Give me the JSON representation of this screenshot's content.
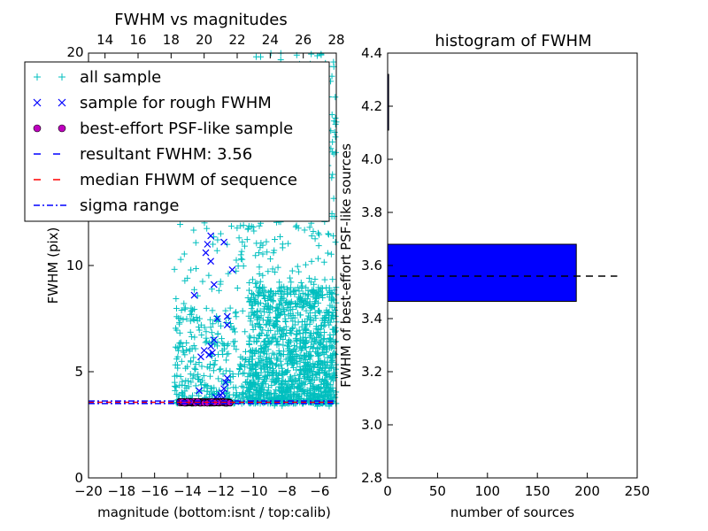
{
  "figure": {
    "background": "#ffffff"
  },
  "chart_data": [
    {
      "type": "scatter",
      "title": "FWHM vs magnitudes",
      "xlabel": "magnitude (bottom:isnt / top:calib)",
      "ylabel": "FWHM (pix)",
      "xlim": [
        -20,
        -5
      ],
      "ylim": [
        0,
        20
      ],
      "x_ticks": [
        -20,
        -18,
        -16,
        -14,
        -12,
        -10,
        -8,
        -6
      ],
      "x_tick_labels": [
        "−20",
        "−18",
        "−16",
        "−14",
        "−12",
        "−10",
        "−8",
        "−6"
      ],
      "y_ticks": [
        0,
        5,
        10
      ],
      "y_tick_labels": [
        "0",
        "5",
        "10"
      ],
      "top_ticks": [
        14,
        16,
        18,
        20,
        22,
        24,
        26,
        28
      ],
      "top_tick_labels": [
        "14",
        "16",
        "18",
        "20",
        "22",
        "24",
        "26",
        "28"
      ],
      "top_xlim": [
        13,
        28
      ],
      "top_ylabel_fragment": "20",
      "legend_position": "upper left",
      "colors": {
        "all_sample": "#00bfbf",
        "rough_sample": "#0000ff",
        "psf_sample_face": "#bf00bf",
        "resultant_line": "#0000ff",
        "median_line": "#ff0000",
        "sigma_line": "#0000ff"
      },
      "series": [
        {
          "name": "all sample",
          "marker": "+",
          "color": "#00bfbf",
          "clusters": [
            {
              "x_range": [
                -10.3,
                -5
              ],
              "y_range": [
                3.3,
                20
              ],
              "count": 1600,
              "dense_y": [
                3.5,
                9
              ]
            },
            {
              "x_range": [
                -14.8,
                -11
              ],
              "y_range": [
                3.5,
                13
              ],
              "count": 300,
              "dense_y": [
                3.5,
                8
              ]
            },
            {
              "x_range": [
                -11,
                -10.3
              ],
              "y_range": [
                3.5,
                12
              ],
              "count": 60,
              "dense_y": [
                3.5,
                6
              ]
            }
          ]
        },
        {
          "name": "sample for rough FWHM",
          "marker": "x",
          "color": "#0000ff",
          "x": [
            -13.6,
            -12.6,
            -12.8,
            -12.9,
            -12.6,
            -12.4,
            -12.2,
            -12.4,
            -12.6,
            -13.0,
            -11.8,
            -11.6,
            -11.6,
            -11.6,
            -11.7,
            -11.8,
            -11.9,
            -12.0,
            -12.3,
            -12.5,
            -13.2,
            -12.7,
            -13.3,
            -11.3,
            -11.9
          ],
          "y": [
            8.6,
            11.4,
            11.0,
            10.6,
            10.2,
            9.1,
            7.5,
            6.5,
            6.2,
            6.0,
            11.1,
            7.6,
            7.2,
            4.7,
            4.5,
            4.2,
            4.0,
            3.9,
            3.8,
            5.9,
            5.7,
            5.8,
            4.1,
            9.8,
            3.7
          ]
        },
        {
          "name": "best-effort PSF-like sample",
          "marker": "o",
          "color": "#bf00bf",
          "x_range": [
            -14.5,
            -11.4
          ],
          "y_value": 3.56,
          "count": 190
        }
      ],
      "reference_lines": [
        {
          "name": "resultant FWHM: 3.56",
          "y": 3.56,
          "style": "dashed",
          "color": "#0000ff"
        },
        {
          "name": "median FHWM of sequence",
          "y": 3.56,
          "style": "dashed",
          "color": "#ff0000"
        },
        {
          "name": "sigma range",
          "y": [
            3.5,
            3.62
          ],
          "style": "dashdot",
          "color": "#0000ff"
        }
      ],
      "legend": [
        {
          "label": "all sample",
          "marker": "+",
          "color": "#00bfbf"
        },
        {
          "label": "sample for rough FWHM",
          "marker": "x",
          "color": "#0000ff"
        },
        {
          "label": "best-effort PSF-like sample",
          "marker": "o",
          "color": "#bf00bf"
        },
        {
          "label": "resultant FWHM: 3.56",
          "marker": "dashed",
          "color": "#0000ff"
        },
        {
          "label": "median FHWM of sequence",
          "marker": "dashed",
          "color": "#ff0000"
        },
        {
          "label": "sigma range",
          "marker": "dashdot",
          "color": "#0000ff"
        }
      ]
    },
    {
      "type": "bar",
      "orientation": "horizontal",
      "title": "histogram of FWHM",
      "xlabel": "number of sources",
      "ylabel": "FWHM of best-effort PSF-like sources",
      "xlim": [
        0,
        250
      ],
      "ylim": [
        2.8,
        4.4
      ],
      "x_ticks": [
        0,
        50,
        100,
        150,
        200,
        250
      ],
      "x_tick_labels": [
        "0",
        "50",
        "100",
        "150",
        "200",
        "250"
      ],
      "y_ticks": [
        2.8,
        3.0,
        3.2,
        3.4,
        3.6,
        3.8,
        4.0,
        4.2,
        4.4
      ],
      "y_tick_labels": [
        "2.8",
        "3.0",
        "3.2",
        "3.4",
        "3.6",
        "3.8",
        "4.0",
        "4.2",
        "4.4"
      ],
      "bars": [
        {
          "y_low": 3.465,
          "y_high": 3.68,
          "value": 189,
          "color": "#0000ff"
        },
        {
          "y_low": 4.11,
          "y_high": 4.32,
          "value": 1,
          "color": "#0000ff"
        }
      ],
      "reference_line": {
        "y": 3.56,
        "x_range": [
          0,
          230
        ],
        "style": "dashed",
        "color": "#000000"
      }
    }
  ]
}
